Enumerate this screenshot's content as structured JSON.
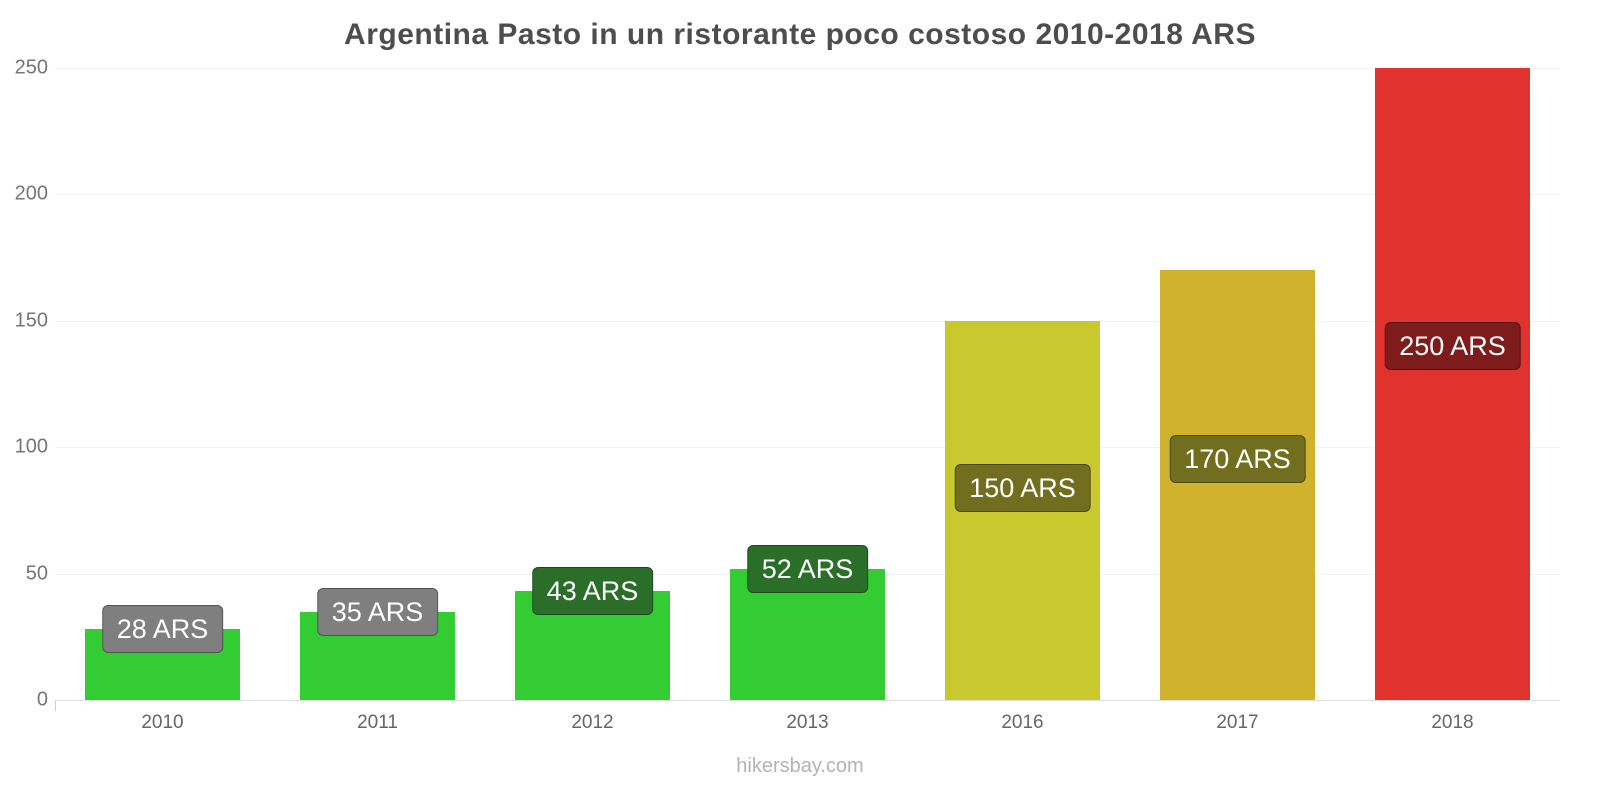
{
  "title": "Argentina Pasto in un ristorante poco costoso 2010-2018 ARS",
  "footer": "hikersbay.com",
  "chart_data": {
    "type": "bar",
    "title": "Argentina Pasto in un ristorante poco costoso 2010-2018 ARS",
    "categories": [
      "2010",
      "2011",
      "2012",
      "2013",
      "2016",
      "2017",
      "2018"
    ],
    "values": [
      28,
      35,
      43,
      52,
      150,
      170,
      250
    ],
    "bar_labels": [
      "28 ARS",
      "35 ARS",
      "43 ARS",
      "52 ARS",
      "150 ARS",
      "170 ARS",
      "250 ARS"
    ],
    "bar_colors": [
      "#33cc33",
      "#33cc33",
      "#33cc33",
      "#33cc33",
      "#c9c92f",
      "#d1b22c",
      "#e0332e"
    ],
    "label_badge_colors": [
      "#7f7f7f",
      "#7f7f7f",
      "#2a6e2a",
      "#2a6e2a",
      "#716f1f",
      "#716f1f",
      "#7e1b1b"
    ],
    "currency": "ARS",
    "xlabel": "",
    "ylabel": "",
    "ylim": [
      0,
      250
    ],
    "yticks": [
      0,
      50,
      100,
      150,
      200,
      250
    ],
    "grid": true,
    "legend": false
  }
}
